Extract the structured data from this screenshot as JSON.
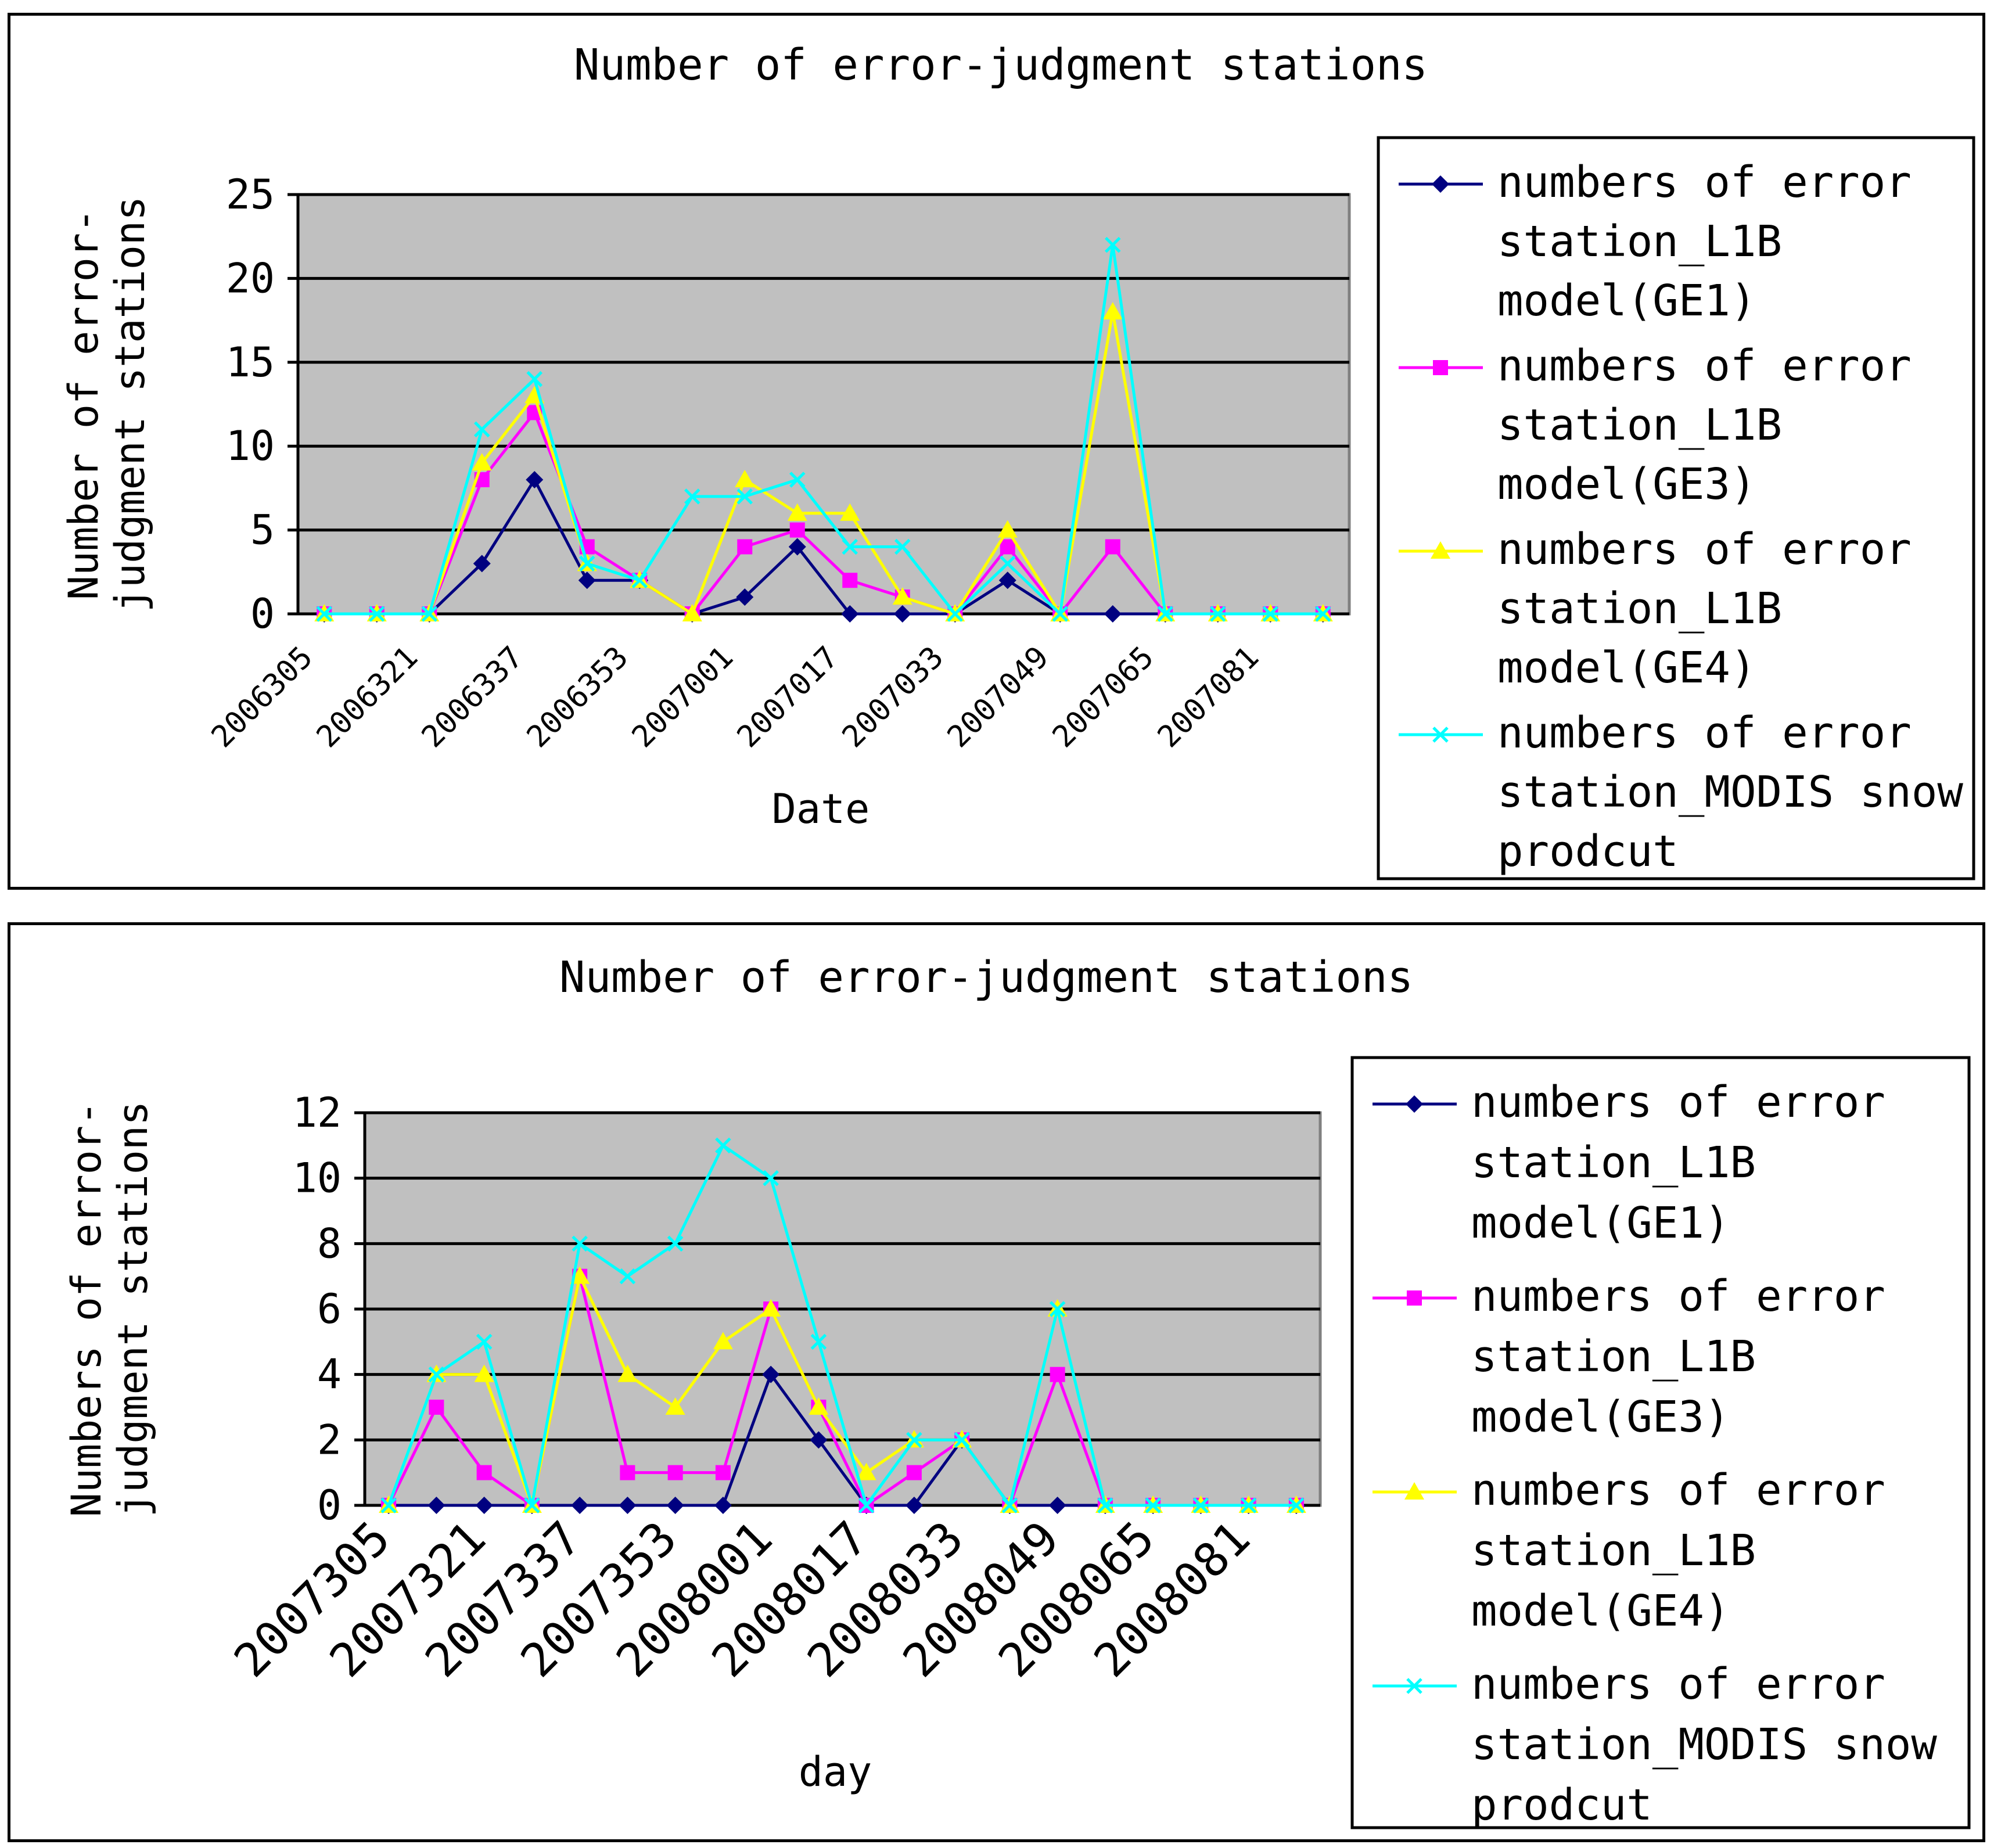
{
  "colors": {
    "plot_bg": "#c0c0c0",
    "ge1": "#000080",
    "ge3": "#ff00ff",
    "ge4": "#ffff00",
    "modis": "#00ffff"
  },
  "chart_data": [
    {
      "type": "line",
      "title": "Number of error-judgment stations",
      "xlabel": "Date",
      "ylabel_lines": [
        "Number of error-",
        "judgment stations"
      ],
      "ylim": [
        0,
        25
      ],
      "yticks": [
        0,
        5,
        10,
        15,
        20,
        25
      ],
      "x_tick_labels": [
        "2006305",
        "2006321",
        "2006337",
        "2006353",
        "2007001",
        "2007017",
        "2007033",
        "2007049",
        "2007065",
        "2007081"
      ],
      "n_points": 20,
      "grid": true,
      "legend_position": "right",
      "series": [
        {
          "key": "ge1",
          "marker": "diamond",
          "name_lines": [
            "numbers of error",
            "station_L1B",
            "model(GE1)"
          ],
          "values": [
            0,
            0,
            0,
            3,
            8,
            2,
            2,
            0,
            1,
            4,
            0,
            0,
            0,
            2,
            0,
            0,
            0,
            0,
            0,
            0
          ]
        },
        {
          "key": "ge3",
          "marker": "square",
          "name_lines": [
            "numbers of error",
            "station_L1B",
            "model(GE3)"
          ],
          "values": [
            0,
            0,
            0,
            8,
            12,
            4,
            2,
            0,
            4,
            5,
            2,
            1,
            0,
            4,
            0,
            4,
            0,
            0,
            0,
            0
          ]
        },
        {
          "key": "ge4",
          "marker": "triangle",
          "name_lines": [
            "numbers of error",
            "station_L1B",
            "model(GE4)"
          ],
          "values": [
            0,
            0,
            0,
            9,
            13,
            3,
            2,
            0,
            8,
            6,
            6,
            1,
            0,
            5,
            0,
            18,
            0,
            0,
            0,
            0
          ]
        },
        {
          "key": "modis",
          "marker": "x",
          "name_lines": [
            "numbers of error",
            "station_MODIS snow",
            "prodcut"
          ],
          "values": [
            0,
            0,
            0,
            11,
            14,
            3,
            2,
            7,
            7,
            8,
            4,
            4,
            0,
            3,
            0,
            22,
            0,
            0,
            0,
            0
          ]
        }
      ]
    },
    {
      "type": "line",
      "title": "Number of error-judgment stations",
      "xlabel": "day",
      "ylabel_lines": [
        "Numbers of error-",
        "judgment stations"
      ],
      "ylim": [
        0,
        12
      ],
      "yticks": [
        0,
        2,
        4,
        6,
        8,
        10,
        12
      ],
      "x_tick_labels": [
        "2007305",
        "2007321",
        "2007337",
        "2007353",
        "2008001",
        "2008017",
        "2008033",
        "2008049",
        "2008065",
        "2008081"
      ],
      "n_points": 20,
      "grid": true,
      "legend_position": "right",
      "series": [
        {
          "key": "ge1",
          "marker": "diamond",
          "name_lines": [
            "numbers of error",
            "station_L1B",
            "model(GE1)"
          ],
          "values": [
            0,
            0,
            0,
            0,
            0,
            0,
            0,
            0,
            4,
            2,
            0,
            0,
            2,
            0,
            0,
            0,
            0,
            0,
            0,
            0
          ]
        },
        {
          "key": "ge3",
          "marker": "square",
          "name_lines": [
            "numbers of error",
            "station_L1B",
            "model(GE3)"
          ],
          "values": [
            0,
            3,
            1,
            0,
            7,
            1,
            1,
            1,
            6,
            3,
            0,
            1,
            2,
            0,
            4,
            0,
            0,
            0,
            0,
            0
          ]
        },
        {
          "key": "ge4",
          "marker": "triangle",
          "name_lines": [
            "numbers of error",
            "station_L1B",
            "model(GE4)"
          ],
          "values": [
            0,
            4,
            4,
            0,
            7,
            4,
            3,
            5,
            6,
            3,
            1,
            2,
            2,
            0,
            6,
            0,
            0,
            0,
            0,
            0
          ]
        },
        {
          "key": "modis",
          "marker": "x",
          "name_lines": [
            "numbers of error",
            "station_MODIS snow",
            "prodcut"
          ],
          "values": [
            0,
            4,
            5,
            0,
            8,
            7,
            8,
            11,
            10,
            5,
            0,
            2,
            2,
            0,
            6,
            0,
            0,
            0,
            0,
            0
          ]
        }
      ]
    }
  ]
}
